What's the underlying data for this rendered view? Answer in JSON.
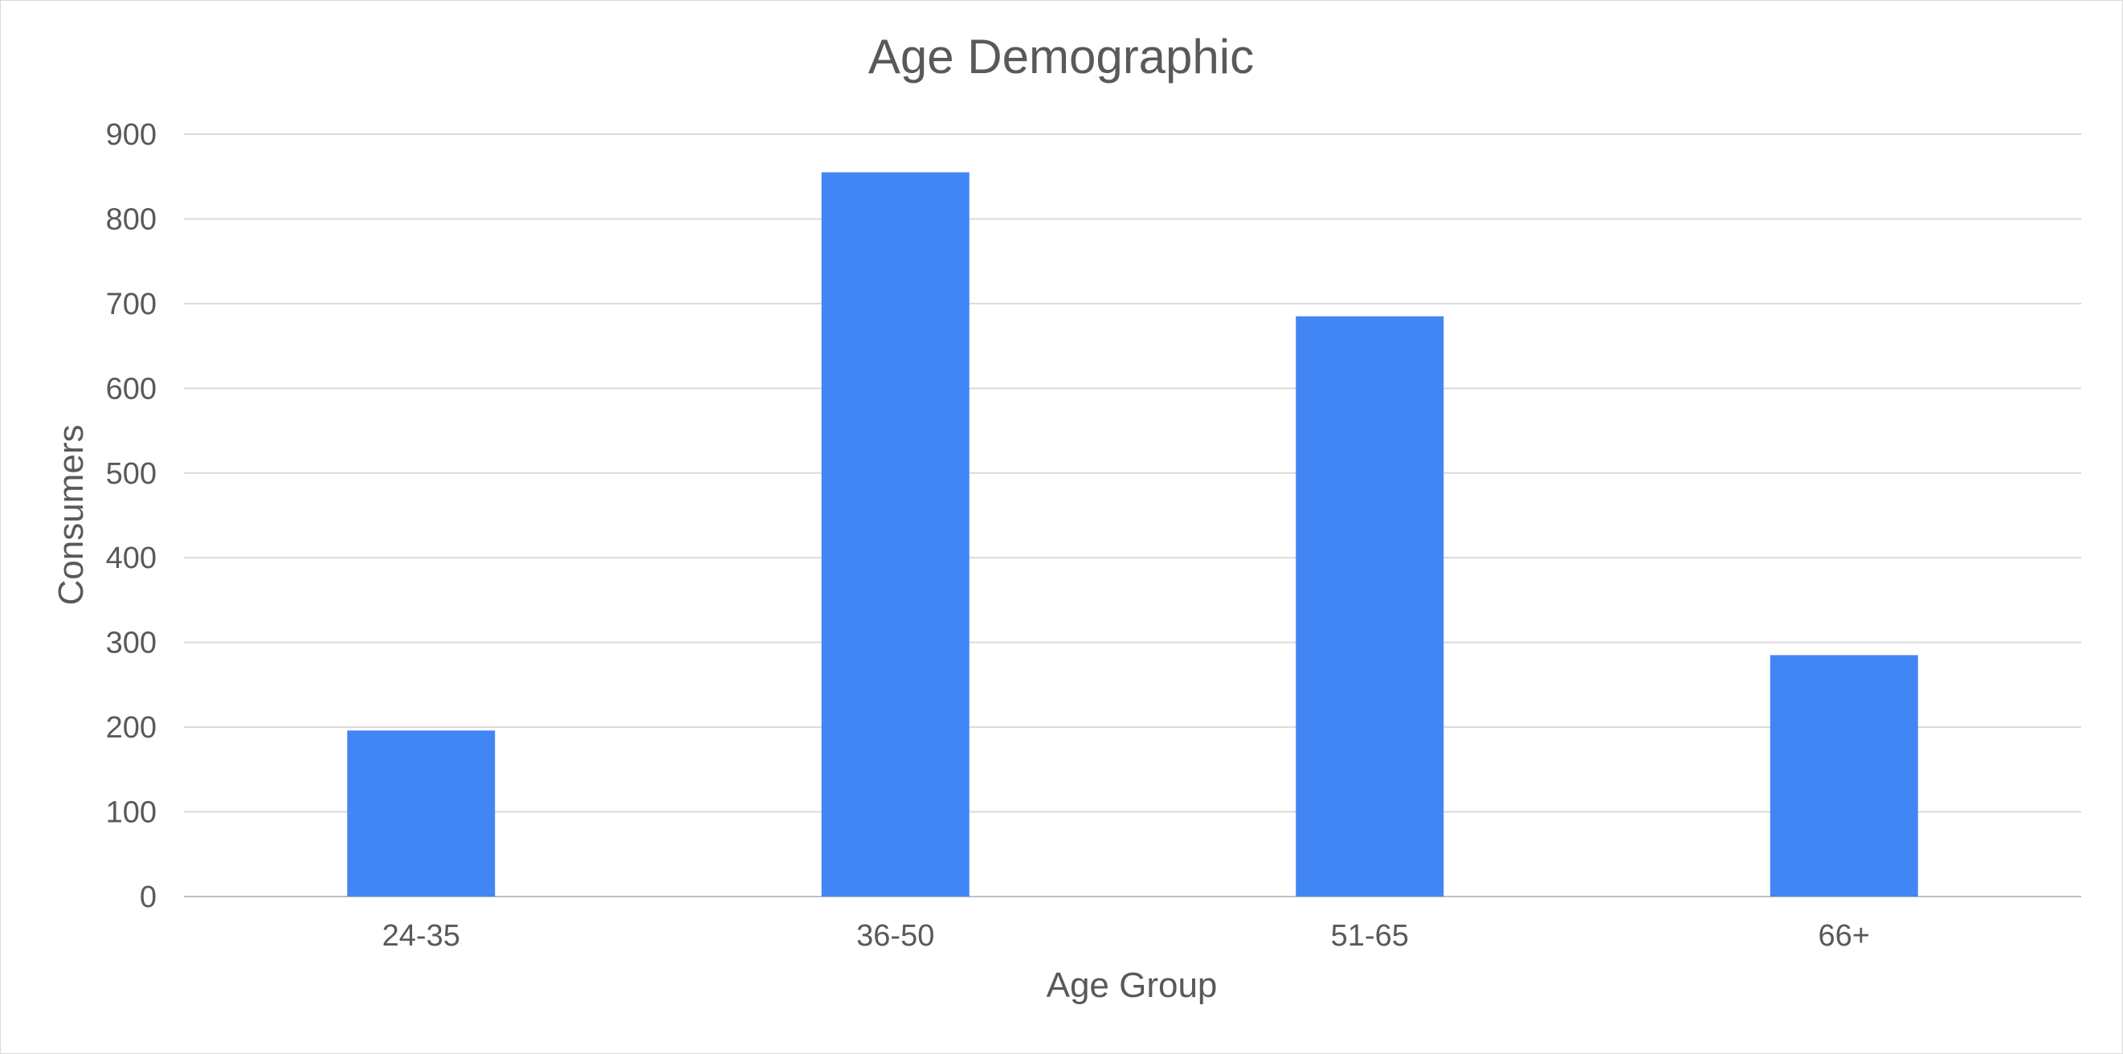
{
  "chart_data": {
    "type": "bar",
    "title": "Age Demographic",
    "xlabel": "Age Group",
    "ylabel": "Consumers",
    "categories": [
      "24-35",
      "36-50",
      "51-65",
      "66+"
    ],
    "values": [
      196,
      855,
      685,
      285
    ],
    "ylim": [
      0,
      900
    ],
    "yticks": [
      0,
      100,
      200,
      300,
      400,
      500,
      600,
      700,
      800,
      900
    ],
    "ytick_labels": [
      "0",
      "100",
      "200",
      "300",
      "400",
      "500",
      "600",
      "700",
      "800",
      "900"
    ],
    "bar_color": "#4285f4",
    "grid": true,
    "legend": "none"
  }
}
